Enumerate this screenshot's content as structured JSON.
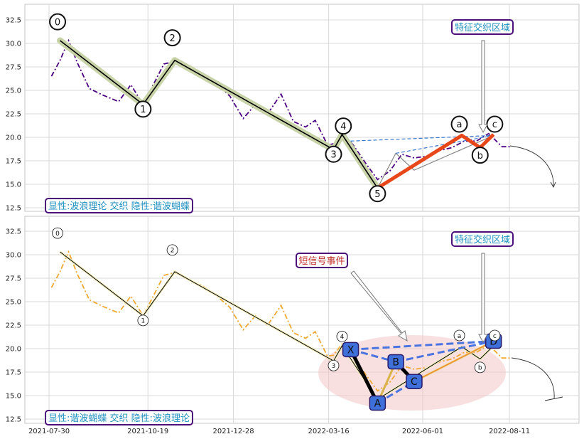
{
  "chart_data": [
    {
      "type": "line",
      "panel": "top",
      "y_ticks": [
        "12.5",
        "15.0",
        "17.5",
        "20.0",
        "22.5",
        "25.0",
        "27.5",
        "30.0",
        "32.5"
      ],
      "ylim": [
        12.2,
        33.8
      ],
      "grid": true,
      "price_series": {
        "color": "#4b0082",
        "x": [
          "2021-08-01",
          "2021-08-08",
          "2021-08-15",
          "2021-08-22",
          "2021-09-01",
          "2021-09-12",
          "2021-09-25",
          "2021-10-05",
          "2021-10-15",
          "2021-10-23",
          "2021-11-01",
          "2021-11-10",
          "2021-11-20",
          "2021-12-01",
          "2021-12-12",
          "2021-12-25",
          "2022-01-05",
          "2022-01-15",
          "2022-01-25",
          "2022-02-05",
          "2022-02-15",
          "2022-02-25",
          "2022-03-05",
          "2022-03-15",
          "2022-03-20",
          "2022-03-27",
          "2022-04-05",
          "2022-04-15",
          "2022-04-25",
          "2022-05-05",
          "2022-05-15",
          "2022-05-25",
          "2022-06-05",
          "2022-06-15",
          "2022-06-25",
          "2022-07-05",
          "2022-07-15",
          "2022-07-25",
          "2022-08-05",
          "2022-08-12"
        ],
        "y": [
          26.5,
          28.2,
          30.3,
          28.0,
          25.2,
          24.5,
          23.8,
          25.6,
          23.5,
          25.5,
          27.8,
          28.1,
          27.4,
          26.8,
          25.9,
          24.4,
          22.0,
          23.5,
          22.5,
          24.6,
          21.7,
          21.1,
          21.8,
          19.2,
          19.3,
          20.5,
          19.2,
          17.3,
          15.5,
          16.4,
          18.2,
          17.8,
          18.0,
          18.6,
          18.9,
          19.6,
          19.6,
          20.4,
          19.0,
          19.0
        ]
      },
      "wave_line": {
        "color": "#000000",
        "x": [
          "2021-08-08",
          "2021-10-15",
          "2021-11-10",
          "2022-03-20",
          "2022-03-27",
          "2022-04-25"
        ],
        "y": [
          30.3,
          23.5,
          28.2,
          18.7,
          20.3,
          14.6
        ]
      },
      "corrective_line": {
        "color": "#e8471a",
        "x": [
          "2022-04-25",
          "2022-07-03",
          "2022-07-18",
          "2022-07-29"
        ],
        "y": [
          14.6,
          20.2,
          18.9,
          20.3
        ]
      },
      "wave_labels": [
        {
          "label": "0",
          "x": "2021-08-06",
          "y": 32.3
        },
        {
          "label": "1",
          "x": "2021-10-15",
          "y": 23.0
        },
        {
          "label": "2",
          "x": "2021-11-08",
          "y": 30.6
        },
        {
          "label": "3",
          "x": "2022-03-20",
          "y": 18.2
        },
        {
          "label": "4",
          "x": "2022-03-28",
          "y": 21.2
        },
        {
          "label": "5",
          "x": "2022-04-25",
          "y": 14.0
        },
        {
          "label": "a",
          "x": "2022-07-01",
          "y": 21.4
        },
        {
          "label": "b",
          "x": "2022-07-18",
          "y": 18.1
        },
        {
          "label": "c",
          "x": "2022-07-30",
          "y": 21.4
        }
      ],
      "harmonic_overlay": {
        "x": [
          "2022-04-03",
          "2022-04-25",
          "2022-05-10",
          "2022-05-25",
          "2022-07-29"
        ],
        "y": [
          19.6,
          14.6,
          18.3,
          16.5,
          20.2
        ]
      },
      "annotations": [
        "特征交织区域"
      ],
      "caption": "显性:波浪理论 交织 隐性:谐波蝴蝶"
    },
    {
      "type": "line",
      "panel": "bottom",
      "x_ticks": [
        "2021-07-30",
        "2021-10-19",
        "2021-12-28",
        "2022-03-16",
        "2022-06-01",
        "2022-08-11"
      ],
      "y_ticks": [
        "12.5",
        "15.0",
        "17.5",
        "20.0",
        "22.5",
        "25.0",
        "27.5",
        "30.0",
        "32.5"
      ],
      "ylim": [
        12.2,
        33.8
      ],
      "grid": true,
      "price_series": {
        "color": "#f0a830",
        "x": [
          "2021-08-01",
          "2021-08-08",
          "2021-08-15",
          "2021-08-22",
          "2021-09-01",
          "2021-09-12",
          "2021-09-25",
          "2021-10-05",
          "2021-10-15",
          "2021-10-23",
          "2021-11-01",
          "2021-11-10",
          "2021-11-20",
          "2021-12-01",
          "2021-12-12",
          "2021-12-25",
          "2022-01-05",
          "2022-01-15",
          "2022-01-25",
          "2022-02-05",
          "2022-02-15",
          "2022-02-25",
          "2022-03-05",
          "2022-03-15",
          "2022-03-20",
          "2022-03-27",
          "2022-04-05",
          "2022-04-15",
          "2022-04-25",
          "2022-05-05",
          "2022-05-15",
          "2022-05-25",
          "2022-06-05",
          "2022-06-15",
          "2022-06-25",
          "2022-07-05",
          "2022-07-15",
          "2022-07-25",
          "2022-08-05",
          "2022-08-12"
        ],
        "y": [
          26.5,
          28.2,
          30.3,
          28.0,
          25.2,
          24.5,
          23.8,
          25.6,
          23.5,
          25.5,
          27.8,
          28.1,
          27.4,
          26.8,
          25.9,
          24.4,
          22.0,
          23.5,
          22.5,
          24.6,
          21.7,
          21.1,
          21.8,
          19.2,
          19.3,
          20.5,
          19.2,
          17.3,
          15.5,
          16.4,
          18.2,
          17.8,
          18.0,
          18.6,
          18.9,
          19.6,
          19.6,
          20.4,
          19.0,
          19.0
        ]
      },
      "wave_line": {
        "color": "#000000",
        "x": [
          "2021-08-08",
          "2021-10-15",
          "2021-11-10",
          "2022-03-20",
          "2022-03-27",
          "2022-04-25",
          "2022-07-03",
          "2022-07-18",
          "2022-07-29"
        ],
        "y": [
          30.3,
          23.5,
          28.2,
          18.7,
          20.3,
          14.6,
          20.2,
          18.9,
          20.3
        ]
      },
      "harmonic_points": [
        {
          "label": "X",
          "x": "2022-04-03",
          "y": 19.9
        },
        {
          "label": "A",
          "x": "2022-04-25",
          "y": 14.2
        },
        {
          "label": "B",
          "x": "2022-05-10",
          "y": 18.6
        },
        {
          "label": "C",
          "x": "2022-05-25",
          "y": 16.5
        },
        {
          "label": "D",
          "x": "2022-07-29",
          "y": 20.8
        }
      ],
      "wave_labels": [
        {
          "label": "0",
          "x": "2021-08-06",
          "y": 32.3
        },
        {
          "label": "1",
          "x": "2021-10-15",
          "y": 23.0
        },
        {
          "label": "2",
          "x": "2021-11-08",
          "y": 30.5
        },
        {
          "label": "3",
          "x": "2022-03-20",
          "y": 18.2
        },
        {
          "label": "4",
          "x": "2022-03-27",
          "y": 21.3
        },
        {
          "label": "a",
          "x": "2022-07-01",
          "y": 21.4
        },
        {
          "label": "b",
          "x": "2022-07-18",
          "y": 18.0
        },
        {
          "label": "c",
          "x": "2022-07-30",
          "y": 21.4
        }
      ],
      "annotations": [
        "特征交织区域",
        "短信号事件"
      ],
      "caption": "显性:谐波蝴蝶 交织 隐性:波浪理论"
    }
  ],
  "colors": {
    "grid": "#d8d8d8",
    "caption_text": "#1f8fbf",
    "caption_border": "#4b0f7a",
    "annotation_border": "#4b0f7a",
    "signal_text": "#c0302a",
    "wave_band": "#c8d3a8",
    "harmonic_box": "#3f6fd8",
    "harmonic_dash": "#4a74e0",
    "ellipse_fill": "#f2c6c8"
  }
}
